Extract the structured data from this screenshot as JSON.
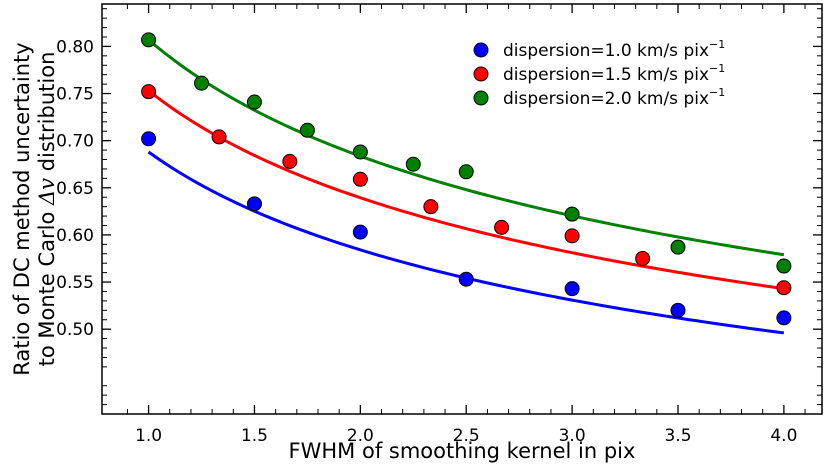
{
  "chart_data": {
    "type": "scatter",
    "title": "",
    "xlabel": "FWHM of smoothing kernel in pix",
    "ylabel_line1": "Ratio of DC method uncertainty",
    "ylabel_line2_prefix": "to Monte Carlo ",
    "ylabel_line2_symbol": "Δv",
    "ylabel_line2_suffix": " distribution",
    "xlim": [
      0.78,
      4.18
    ],
    "ylim": [
      0.41,
      0.845
    ],
    "xticks": [
      1.0,
      1.5,
      2.0,
      2.5,
      3.0,
      3.5,
      4.0
    ],
    "xtick_labels": [
      "1.0",
      "1.5",
      "2.0",
      "2.5",
      "3.0",
      "3.5",
      "4.0"
    ],
    "yticks": [
      0.5,
      0.55,
      0.6,
      0.65,
      0.7,
      0.75,
      0.8
    ],
    "ytick_labels": [
      "0.50",
      "0.55",
      "0.60",
      "0.65",
      "0.70",
      "0.75",
      "0.80"
    ],
    "legend_position": "top-right",
    "series": [
      {
        "name": "dispersion=1.0 km/s pix",
        "label_base": "dispersion=1.0 km/s pix",
        "label_sup": "−1",
        "color": "#0000ff",
        "x": [
          1.0,
          1.5,
          2.0,
          2.5,
          3.0,
          3.5,
          4.0
        ],
        "y": [
          0.702,
          0.633,
          0.603,
          0.553,
          0.543,
          0.52,
          0.512
        ],
        "fit_x": [
          1.0,
          4.0
        ],
        "fit_y": [
          0.688,
          0.496
        ]
      },
      {
        "name": "dispersion=1.5 km/s pix",
        "label_base": "dispersion=1.5 km/s pix",
        "label_sup": "−1",
        "color": "#ff0000",
        "x": [
          1.0,
          1.333,
          1.667,
          2.0,
          2.333,
          2.667,
          3.0,
          3.333,
          4.0
        ],
        "y": [
          0.752,
          0.704,
          0.678,
          0.659,
          0.63,
          0.608,
          0.599,
          0.575,
          0.544
        ],
        "fit_x": [
          1.0,
          4.0
        ],
        "fit_y": [
          0.753,
          0.543
        ]
      },
      {
        "name": "dispersion=2.0 km/s pix",
        "label_base": "dispersion=2.0 km/s pix",
        "label_sup": "−1",
        "color": "#008000",
        "x": [
          1.0,
          1.25,
          1.5,
          1.75,
          2.0,
          2.25,
          2.5,
          3.0,
          3.5,
          4.0
        ],
        "y": [
          0.807,
          0.761,
          0.741,
          0.711,
          0.688,
          0.675,
          0.667,
          0.622,
          0.587,
          0.567
        ],
        "fit_x": [
          1.0,
          4.0
        ],
        "fit_y": [
          0.807,
          0.579
        ]
      }
    ]
  }
}
